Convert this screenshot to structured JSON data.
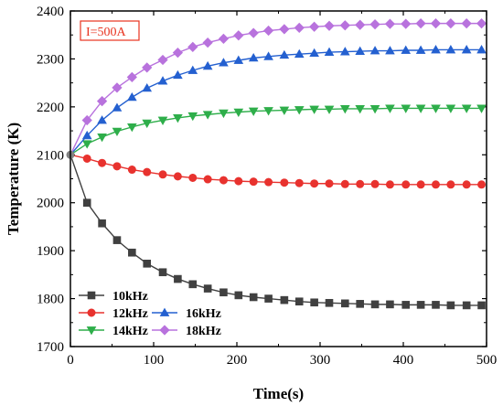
{
  "chart_data": {
    "type": "line",
    "xlabel": "Time(s)",
    "ylabel": "Temperature (K)",
    "xlim": [
      0,
      500
    ],
    "ylim": [
      1700,
      2400
    ],
    "xticks": [
      0,
      100,
      200,
      300,
      400,
      500
    ],
    "yticks": [
      1700,
      1800,
      1900,
      2000,
      2100,
      2200,
      2300,
      2400
    ],
    "x": [
      0,
      20,
      38,
      56,
      74,
      92,
      111,
      129,
      147,
      165,
      184,
      202,
      220,
      238,
      257,
      275,
      293,
      311,
      330,
      348,
      366,
      384,
      403,
      421,
      439,
      457,
      476,
      494
    ],
    "annotation": "I=500A",
    "legend_position": "bottom-left",
    "series": [
      {
        "name": "10kHz",
        "color": "#404040",
        "marker": "square",
        "values": [
          2100,
          2000,
          1957,
          1922,
          1896,
          1873,
          1855,
          1841,
          1830,
          1821,
          1813,
          1807,
          1803,
          1800,
          1797,
          1794,
          1792,
          1791,
          1790,
          1789,
          1788,
          1788,
          1787,
          1787,
          1787,
          1786,
          1786,
          1786
        ]
      },
      {
        "name": "12kHz",
        "color": "#e8322e",
        "marker": "circle",
        "values": [
          2100,
          2092,
          2083,
          2076,
          2069,
          2064,
          2059,
          2055,
          2052,
          2049,
          2047,
          2045,
          2044,
          2043,
          2042,
          2041,
          2040,
          2040,
          2039,
          2039,
          2039,
          2038,
          2038,
          2038,
          2038,
          2038,
          2038,
          2038
        ]
      },
      {
        "name": "14kHz",
        "color": "#2eae4a",
        "marker": "triangle-down",
        "values": [
          2100,
          2123,
          2137,
          2149,
          2158,
          2166,
          2172,
          2177,
          2181,
          2184,
          2187,
          2189,
          2191,
          2192,
          2193,
          2194,
          2195,
          2195,
          2196,
          2196,
          2196,
          2197,
          2197,
          2197,
          2197,
          2197,
          2197,
          2197
        ]
      },
      {
        "name": "16kHz",
        "color": "#2460d0",
        "marker": "triangle-up",
        "values": [
          2100,
          2140,
          2172,
          2198,
          2220,
          2239,
          2254,
          2266,
          2276,
          2285,
          2292,
          2297,
          2302,
          2305,
          2308,
          2310,
          2312,
          2314,
          2315,
          2316,
          2317,
          2317,
          2318,
          2318,
          2319,
          2319,
          2319,
          2319
        ]
      },
      {
        "name": "18kHz",
        "color": "#b872dd",
        "marker": "diamond",
        "values": [
          2100,
          2172,
          2212,
          2240,
          2262,
          2282,
          2298,
          2313,
          2325,
          2334,
          2342,
          2349,
          2354,
          2359,
          2362,
          2365,
          2367,
          2369,
          2370,
          2371,
          2372,
          2373,
          2373,
          2374,
          2374,
          2374,
          2374,
          2374
        ]
      }
    ]
  }
}
